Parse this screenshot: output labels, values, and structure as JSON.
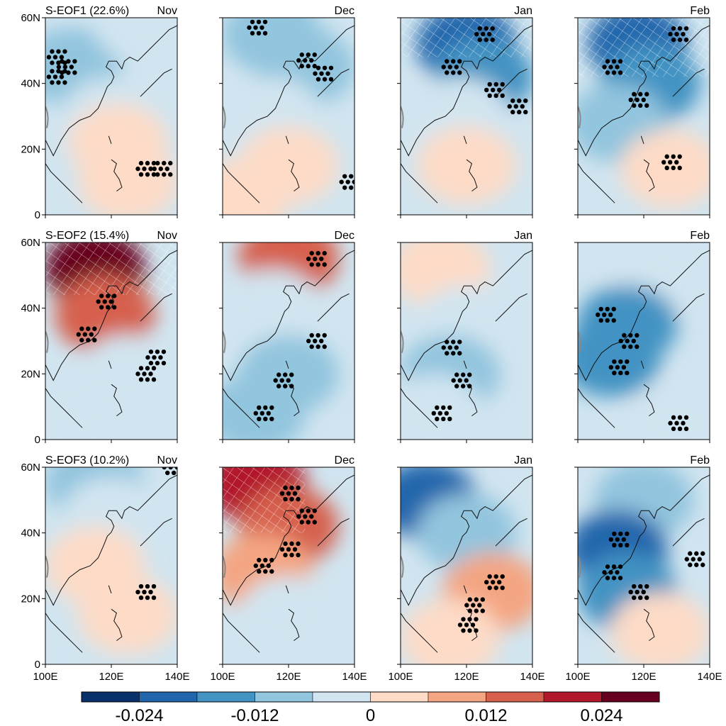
{
  "chart_data": {
    "type": "heatmap",
    "rows": [
      {
        "label": "S-EOF1 (22.6%)"
      },
      {
        "label": "S-EOF2 (15.4%)"
      },
      {
        "label": "S-EOF3 (10.2%)"
      }
    ],
    "months": [
      "Nov",
      "Dec",
      "Jan",
      "Feb"
    ],
    "x_ticks": [
      "100E",
      "120E",
      "140E"
    ],
    "y_ticks": [
      "0",
      "20N",
      "40N",
      "60N"
    ],
    "lon_range": [
      100,
      140
    ],
    "lat_range": [
      0,
      60
    ],
    "colorbar": {
      "levels": [
        -0.03,
        -0.024,
        -0.018,
        -0.012,
        -0.006,
        0,
        0.006,
        0.012,
        0.018,
        0.024,
        0.03
      ],
      "labels": [
        "-0.024",
        "-0.012",
        "0",
        "0.012",
        "0.024"
      ],
      "colors": [
        "#08306b",
        "#2166ac",
        "#4393c3",
        "#92c5de",
        "#d1e5f0",
        "#fddbc7",
        "#f4a582",
        "#d6604d",
        "#b2182b",
        "#67001f"
      ]
    },
    "panels": [
      [
        {
          "month": "Nov",
          "fields": [
            {
              "lat": 45,
              "lon": 108,
              "level": 3
            },
            {
              "lat": 30,
              "lon": 120,
              "level": 4
            },
            {
              "lat": 22,
              "lon": 122,
              "level": 5
            },
            {
              "lat": 10,
              "lon": 125,
              "level": 5
            },
            {
              "lat": 58,
              "lon": 130,
              "level": 4
            }
          ],
          "stipple": [
            [
              48,
              103
            ],
            [
              45,
              106
            ],
            [
              42,
              103
            ],
            [
              14,
              130
            ],
            [
              14,
              135
            ]
          ],
          "hatch": []
        },
        {
          "month": "Dec",
          "fields": [
            {
              "lat": 55,
              "lon": 115,
              "level": 3
            },
            {
              "lat": 45,
              "lon": 125,
              "level": 3
            },
            {
              "lat": 30,
              "lon": 115,
              "level": 4
            },
            {
              "lat": 15,
              "lon": 120,
              "level": 5
            },
            {
              "lat": 5,
              "lon": 105,
              "level": 5
            }
          ],
          "stipple": [
            [
              57,
              110
            ],
            [
              47,
              125
            ],
            [
              43,
              130
            ],
            [
              10,
              138
            ]
          ],
          "hatch": []
        },
        {
          "month": "Jan",
          "fields": [
            {
              "lat": 52,
              "lon": 120,
              "level": 1
            },
            {
              "lat": 42,
              "lon": 125,
              "level": 2
            },
            {
              "lat": 30,
              "lon": 118,
              "level": 4
            },
            {
              "lat": 15,
              "lon": 120,
              "level": 5
            }
          ],
          "stipple": [
            [
              55,
              125
            ],
            [
              45,
              115
            ],
            [
              38,
              128
            ],
            [
              33,
              135
            ]
          ],
          "hatch": [
            [
              48,
              62,
              100,
              140
            ]
          ]
        },
        {
          "month": "Feb",
          "fields": [
            {
              "lat": 52,
              "lon": 118,
              "level": 1
            },
            {
              "lat": 40,
              "lon": 122,
              "level": 2
            },
            {
              "lat": 28,
              "lon": 112,
              "level": 3
            },
            {
              "lat": 14,
              "lon": 128,
              "level": 5
            }
          ],
          "stipple": [
            [
              55,
              130
            ],
            [
              45,
              110
            ],
            [
              35,
              118
            ],
            [
              16,
              128
            ]
          ],
          "hatch": [
            [
              42,
              62,
              100,
              140
            ]
          ]
        }
      ],
      [
        {
          "month": "Nov",
          "fields": [
            {
              "lat": 52,
              "lon": 115,
              "level": 9
            },
            {
              "lat": 38,
              "lon": 118,
              "level": 7
            },
            {
              "lat": 20,
              "lon": 125,
              "level": 4
            },
            {
              "lat": 10,
              "lon": 110,
              "level": 4
            }
          ],
          "stipple": [
            [
              42,
              118
            ],
            [
              32,
              112
            ],
            [
              25,
              133
            ],
            [
              20,
              130
            ]
          ],
          "hatch": [
            [
              44,
              62,
              100,
              140
            ]
          ]
        },
        {
          "month": "Dec",
          "fields": [
            {
              "lat": 55,
              "lon": 120,
              "level": 7
            },
            {
              "lat": 40,
              "lon": 115,
              "level": 4
            },
            {
              "lat": 20,
              "lon": 120,
              "level": 3
            },
            {
              "lat": 8,
              "lon": 110,
              "level": 3
            }
          ],
          "stipple": [
            [
              55,
              128
            ],
            [
              30,
              128
            ],
            [
              18,
              118
            ],
            [
              8,
              112
            ]
          ],
          "hatch": []
        },
        {
          "month": "Jan",
          "fields": [
            {
              "lat": 52,
              "lon": 112,
              "level": 5
            },
            {
              "lat": 35,
              "lon": 120,
              "level": 4
            },
            {
              "lat": 20,
              "lon": 115,
              "level": 3
            },
            {
              "lat": 8,
              "lon": 110,
              "level": 4
            }
          ],
          "stipple": [
            [
              28,
              115
            ],
            [
              18,
              118
            ],
            [
              8,
              112
            ]
          ],
          "hatch": []
        },
        {
          "month": "Feb",
          "fields": [
            {
              "lat": 50,
              "lon": 125,
              "level": 4
            },
            {
              "lat": 35,
              "lon": 115,
              "level": 2
            },
            {
              "lat": 25,
              "lon": 110,
              "level": 2
            },
            {
              "lat": 5,
              "lon": 130,
              "level": 4
            }
          ],
          "stipple": [
            [
              38,
              108
            ],
            [
              30,
              115
            ],
            [
              22,
              112
            ],
            [
              5,
              130
            ]
          ],
          "hatch": []
        }
      ],
      [
        {
          "month": "Nov",
          "fields": [
            {
              "lat": 55,
              "lon": 115,
              "level": 3
            },
            {
              "lat": 45,
              "lon": 120,
              "level": 4
            },
            {
              "lat": 30,
              "lon": 115,
              "level": 5
            },
            {
              "lat": 15,
              "lon": 125,
              "level": 5
            }
          ],
          "stipple": [
            [
              22,
              130
            ],
            [
              60,
              138
            ]
          ],
          "hatch": []
        },
        {
          "month": "Dec",
          "fields": [
            {
              "lat": 55,
              "lon": 110,
              "level": 8
            },
            {
              "lat": 42,
              "lon": 120,
              "level": 7
            },
            {
              "lat": 28,
              "lon": 112,
              "level": 6
            },
            {
              "lat": 15,
              "lon": 120,
              "level": 4
            }
          ],
          "stipple": [
            [
              52,
              120
            ],
            [
              45,
              125
            ],
            [
              35,
              120
            ],
            [
              30,
              112
            ]
          ],
          "hatch": [
            [
              40,
              62,
              100,
              125
            ]
          ]
        },
        {
          "month": "Jan",
          "fields": [
            {
              "lat": 50,
              "lon": 108,
              "level": 1
            },
            {
              "lat": 40,
              "lon": 120,
              "level": 3
            },
            {
              "lat": 22,
              "lon": 128,
              "level": 6
            },
            {
              "lat": 8,
              "lon": 115,
              "level": 5
            }
          ],
          "stipple": [
            [
              25,
              128
            ],
            [
              18,
              122
            ],
            [
              12,
              120
            ]
          ],
          "hatch": []
        },
        {
          "month": "Feb",
          "fields": [
            {
              "lat": 50,
              "lon": 120,
              "level": 3
            },
            {
              "lat": 35,
              "lon": 112,
              "level": 1
            },
            {
              "lat": 22,
              "lon": 115,
              "level": 2
            },
            {
              "lat": 10,
              "lon": 125,
              "level": 5
            }
          ],
          "stipple": [
            [
              38,
              112
            ],
            [
              28,
              110
            ],
            [
              22,
              118
            ],
            [
              32,
              135
            ]
          ],
          "hatch": []
        }
      ]
    ]
  }
}
